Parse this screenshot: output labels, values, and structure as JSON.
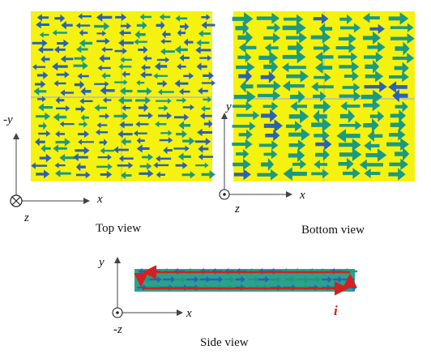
{
  "colors": {
    "plate": "#f5f20f",
    "arrow_blue": "#2b62b4",
    "arrow_green": "#1b9a82",
    "current_red": "#d42020",
    "axis": "#444444"
  },
  "top_view": {
    "caption": "Top view",
    "axis_vertical": "-y",
    "axis_horizontal": "x",
    "axis_out": "z",
    "axis_out_symbol": "into-page-cross-icon"
  },
  "bottom_view": {
    "caption": "Bottom view",
    "axis_vertical": "y",
    "axis_horizontal": "x",
    "axis_out": "z",
    "axis_out_symbol": "out-of-page-dot-icon"
  },
  "side_view": {
    "caption": "Side view",
    "axis_vertical": "y",
    "axis_horizontal": "x",
    "axis_out": "-z",
    "axis_out_symbol": "out-of-page-dot-icon",
    "current_label": "i"
  }
}
